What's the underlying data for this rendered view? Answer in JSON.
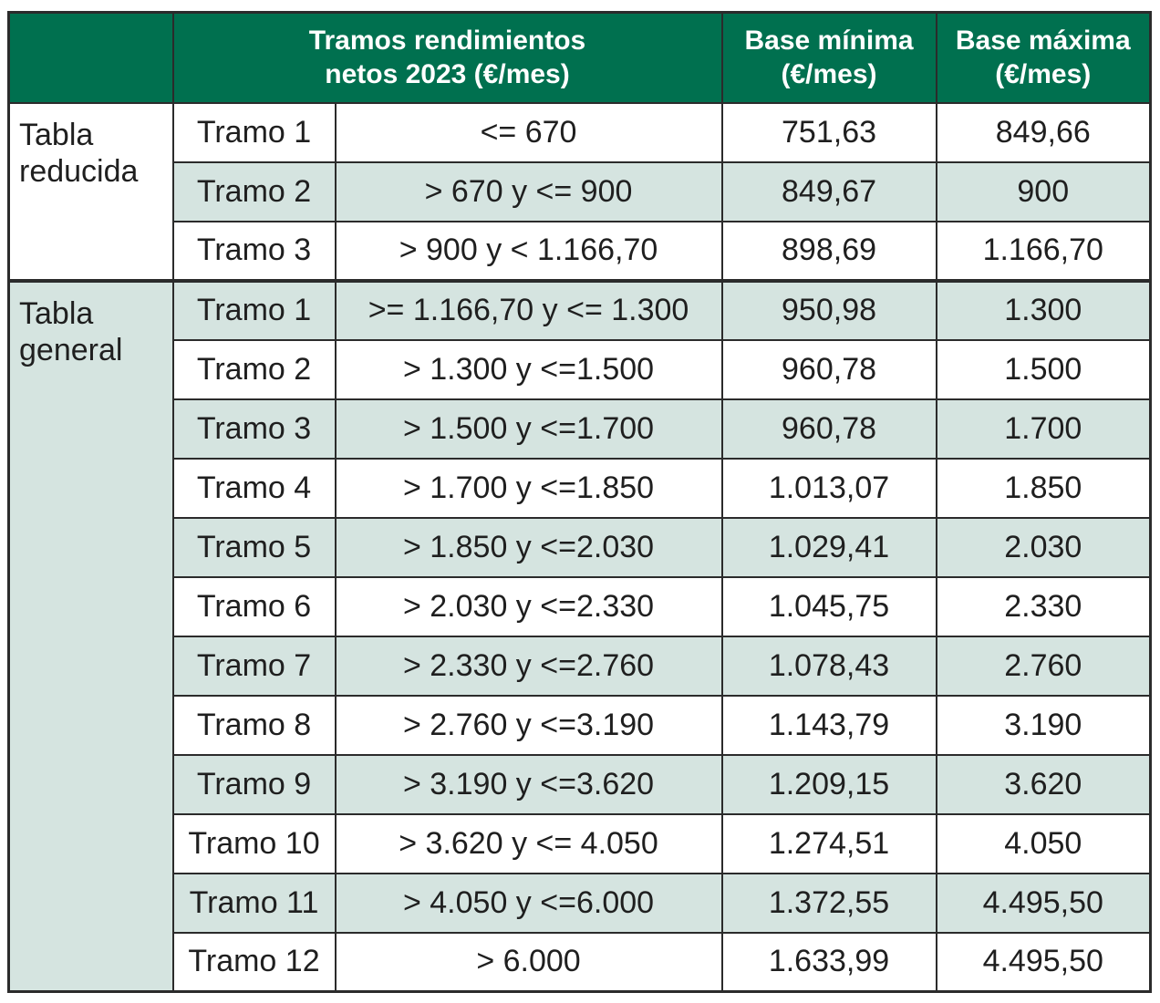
{
  "header": {
    "col_group": "",
    "col_range_line1": "Tramos rendimientos",
    "col_range_line2": "netos 2023 (€/mes)",
    "col_min_line1": "Base mínima",
    "col_min_line2": "(€/mes)",
    "col_max_line1": "Base máxima",
    "col_max_line2": "(€/mes)"
  },
  "groups": {
    "reducida": {
      "line1": "Tabla",
      "line2": "reducida"
    },
    "general": {
      "line1": "Tabla",
      "line2": "general"
    }
  },
  "rows_reducida": [
    {
      "tramo": "Tramo 1",
      "range": "<= 670",
      "min": "751,63",
      "max": "849,66"
    },
    {
      "tramo": "Tramo 2",
      "range": "> 670 y <= 900",
      "min": "849,67",
      "max": "900"
    },
    {
      "tramo": "Tramo 3",
      "range": "> 900 y < 1.166,70",
      "min": "898,69",
      "max": "1.166,70"
    }
  ],
  "rows_general": [
    {
      "tramo": "Tramo 1",
      "range": ">= 1.166,70 y <= 1.300",
      "min": "950,98",
      "max": "1.300"
    },
    {
      "tramo": "Tramo 2",
      "range": "> 1.300 y <=1.500",
      "min": "960,78",
      "max": "1.500"
    },
    {
      "tramo": "Tramo 3",
      "range": "> 1.500 y <=1.700",
      "min": "960,78",
      "max": "1.700"
    },
    {
      "tramo": "Tramo 4",
      "range": "> 1.700 y <=1.850",
      "min": "1.013,07",
      "max": "1.850"
    },
    {
      "tramo": "Tramo 5",
      "range": "> 1.850 y <=2.030",
      "min": "1.029,41",
      "max": "2.030"
    },
    {
      "tramo": "Tramo 6",
      "range": "> 2.030 y <=2.330",
      "min": "1.045,75",
      "max": "2.330"
    },
    {
      "tramo": "Tramo 7",
      "range": "> 2.330 y <=2.760",
      "min": "1.078,43",
      "max": "2.760"
    },
    {
      "tramo": "Tramo 8",
      "range": "> 2.760 y <=3.190",
      "min": "1.143,79",
      "max": "3.190"
    },
    {
      "tramo": "Tramo 9",
      "range": "> 3.190 y <=3.620",
      "min": "1.209,15",
      "max": "3.620"
    },
    {
      "tramo": "Tramo 10",
      "range": "> 3.620 y <= 4.050",
      "min": "1.274,51",
      "max": "4.050"
    },
    {
      "tramo": "Tramo 11",
      "range": "> 4.050 y <=6.000",
      "min": "1.372,55",
      "max": "4.495,50"
    },
    {
      "tramo": "Tramo 12",
      "range": "> 6.000",
      "min": "1.633,99",
      "max": "4.495,50"
    }
  ],
  "colors": {
    "header_bg": "#00704f",
    "header_text": "#ffffff",
    "shaded_row": "#d5e4e0",
    "border": "#2b2b2b"
  }
}
